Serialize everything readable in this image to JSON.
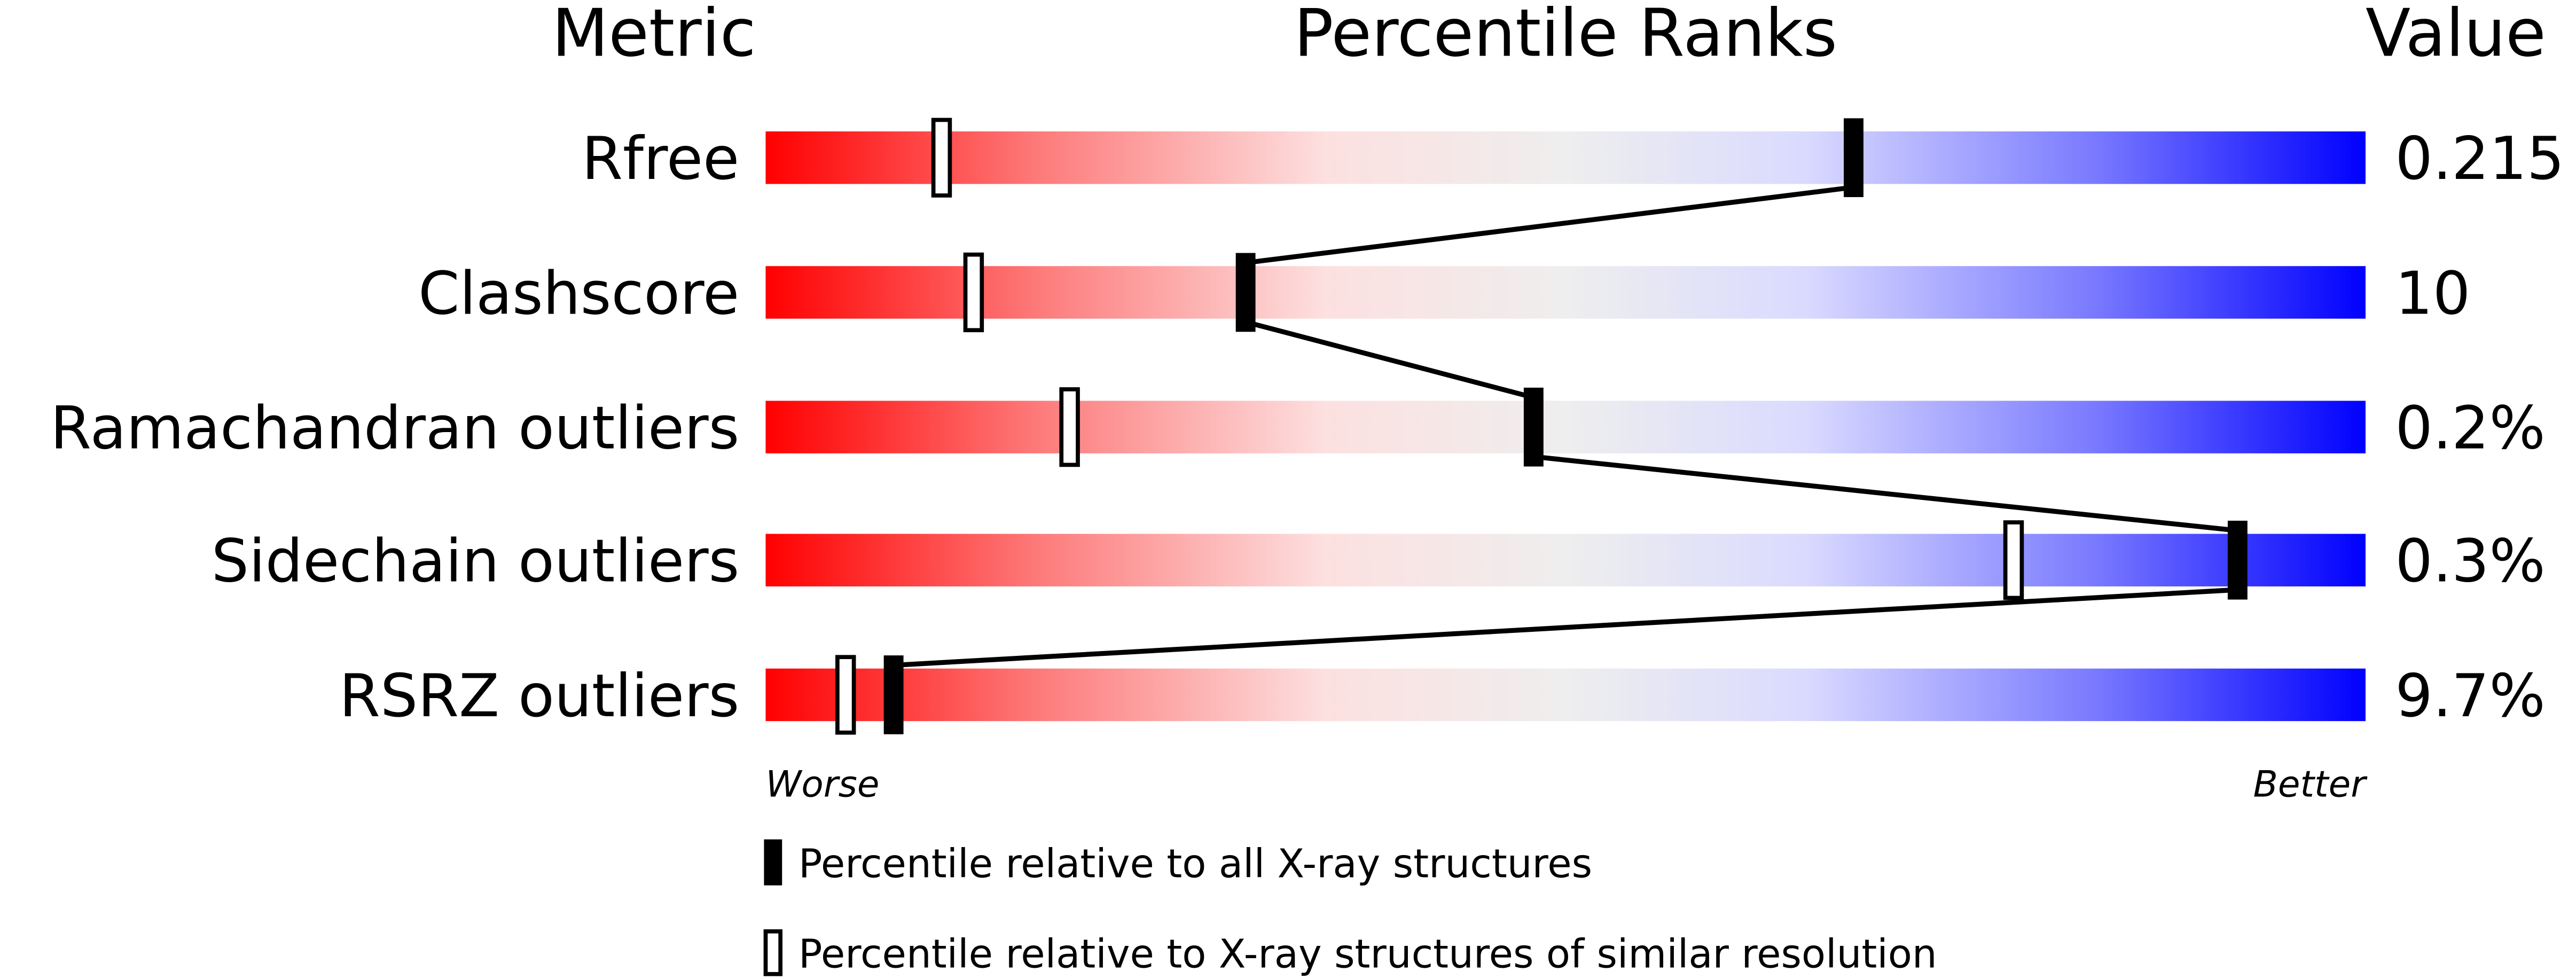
{
  "header": {
    "metric": "Metric",
    "percentile_ranks": "Percentile Ranks",
    "value": "Value"
  },
  "axis": {
    "worse": "Worse",
    "better": "Better"
  },
  "legend": {
    "all": "Percentile relative to all X-ray structures",
    "similar": "Percentile relative to X-ray structures of similar resolution"
  },
  "colors": {
    "worse": "#ff0000",
    "middle": "#eeeeee",
    "better": "#0000ff",
    "marker": "#000000"
  },
  "chart_data": {
    "type": "percentile-bars",
    "xlim": [
      0,
      100
    ],
    "rows": [
      {
        "metric": "Rfree",
        "value": "0.215",
        "percentile_all": 68,
        "percentile_similar": 11
      },
      {
        "metric": "Clashscore",
        "value": "10",
        "percentile_all": 30,
        "percentile_similar": 13
      },
      {
        "metric": "Ramachandran outliers",
        "value": "0.2%",
        "percentile_all": 48,
        "percentile_similar": 19
      },
      {
        "metric": "Sidechain outliers",
        "value": "0.3%",
        "percentile_all": 92,
        "percentile_similar": 78
      },
      {
        "metric": "RSRZ outliers",
        "value": "9.7%",
        "percentile_all": 8,
        "percentile_similar": 5
      }
    ]
  }
}
